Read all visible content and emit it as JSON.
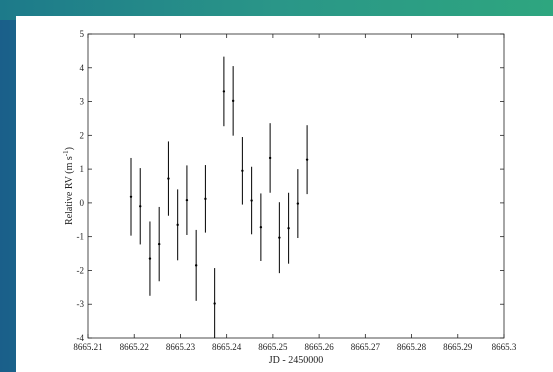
{
  "chart_data": {
    "type": "scatter",
    "xlabel": "JD - 2450000",
    "ylabel_main": "Relative RV (m s",
    "ylabel_sup": "-1",
    "ylabel_close": ")",
    "xlim": [
      8665.21,
      8665.3
    ],
    "ylim": [
      -4,
      5
    ],
    "x_ticks": [
      "8665.21",
      "8665.22",
      "8665.23",
      "8665.24",
      "8665.25",
      "8665.26",
      "8665.27",
      "8665.28",
      "8665.29",
      "8665.3"
    ],
    "x_tick_values": [
      8665.21,
      8665.22,
      8665.23,
      8665.24,
      8665.25,
      8665.26,
      8665.27,
      8665.28,
      8665.29,
      8665.3
    ],
    "y_ticks": [
      "-4",
      "-3",
      "-2",
      "-1",
      "0",
      "1",
      "2",
      "3",
      "4",
      "5"
    ],
    "y_tick_values": [
      -4,
      -3,
      -2,
      -1,
      0,
      1,
      2,
      3,
      4,
      5
    ],
    "grid": false,
    "series": [
      {
        "points": [
          {
            "x": 8665.2193,
            "y": 0.18,
            "err": 1.15
          },
          {
            "x": 8665.2213,
            "y": -0.1,
            "err": 1.13
          },
          {
            "x": 8665.2234,
            "y": -1.65,
            "err": 1.1
          },
          {
            "x": 8665.2254,
            "y": -1.22,
            "err": 1.1
          },
          {
            "x": 8665.2274,
            "y": 0.72,
            "err": 1.1
          },
          {
            "x": 8665.2294,
            "y": -0.65,
            "err": 1.05
          },
          {
            "x": 8665.2314,
            "y": 0.08,
            "err": 1.03
          },
          {
            "x": 8665.2334,
            "y": -1.85,
            "err": 1.05
          },
          {
            "x": 8665.2354,
            "y": 0.12,
            "err": 1.0
          },
          {
            "x": 8665.2374,
            "y": -2.98,
            "err": 1.05
          },
          {
            "x": 8665.2394,
            "y": 3.3,
            "err": 1.03
          },
          {
            "x": 8665.2414,
            "y": 3.02,
            "err": 1.03
          },
          {
            "x": 8665.2434,
            "y": 0.95,
            "err": 1.0
          },
          {
            "x": 8665.2454,
            "y": 0.07,
            "err": 1.0
          },
          {
            "x": 8665.2474,
            "y": -0.72,
            "err": 1.0
          },
          {
            "x": 8665.2494,
            "y": 1.33,
            "err": 1.03
          },
          {
            "x": 8665.2514,
            "y": -1.03,
            "err": 1.05
          },
          {
            "x": 8665.2534,
            "y": -0.75,
            "err": 1.05
          },
          {
            "x": 8665.2554,
            "y": -0.02,
            "err": 1.02
          },
          {
            "x": 8665.2574,
            "y": 1.28,
            "err": 1.02
          }
        ]
      }
    ]
  }
}
